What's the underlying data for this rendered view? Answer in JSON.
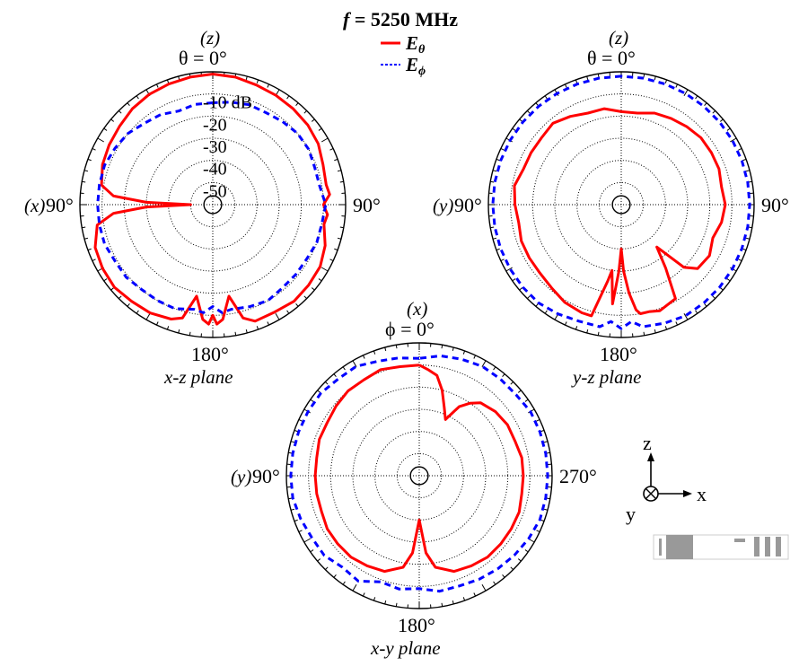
{
  "title": {
    "prefix": "f",
    "rest": " = 5250 MHz"
  },
  "legend": [
    {
      "label": "E",
      "sub": "θ",
      "color": "#ff0000",
      "dash": "solid"
    },
    {
      "label": "E",
      "sub": "ϕ",
      "color": "#0000ff",
      "dash": "dashed"
    }
  ],
  "colors": {
    "theta": "#ff0000",
    "phi": "#0000ff",
    "grid": "#000000"
  },
  "ring_labels": [
    "-10 dB",
    "-20",
    "-30",
    "-40",
    "-50"
  ],
  "axes": {
    "top_minus_x": "(x)",
    "top_minus_y": "(y)",
    "top_z": "(z)"
  },
  "chart_data": [
    {
      "type": "polar",
      "plane": "x-z plane",
      "axis_label_top": "(z)",
      "angle_label_top": "θ = 0°",
      "angle_label_left": "90°",
      "axis_label_left": "(x)",
      "angle_label_right": "90°",
      "angle_label_bottom": "180°",
      "r_range_db": [
        -60,
        0
      ],
      "r_ticks_db": [
        -10,
        -20,
        -30,
        -40,
        -50
      ],
      "series": [
        {
          "name": "Eθ",
          "angle_deg": [
            0,
            10,
            20,
            30,
            40,
            50,
            60,
            70,
            80,
            85,
            88,
            90,
            92,
            95,
            100,
            110,
            120,
            130,
            140,
            150,
            160,
            165,
            170,
            175,
            178,
            180,
            182,
            185,
            190,
            195,
            200,
            210,
            220,
            230,
            240,
            250,
            260,
            265,
            270,
            275,
            280,
            290,
            300,
            310,
            320,
            330,
            340,
            350,
            360
          ],
          "values_db": [
            -1,
            -1.5,
            -2,
            -2.5,
            -3.5,
            -5,
            -6,
            -7,
            -9,
            -15,
            -30,
            -50,
            -30,
            -15,
            -7,
            -3.5,
            -2.5,
            -2,
            -3,
            -3.5,
            -5,
            -7,
            -18,
            -8,
            -6,
            -10,
            -6,
            -8,
            -18,
            -7,
            -4,
            -4,
            -3,
            -3.5,
            -4,
            -6,
            -9,
            -8,
            -10,
            -7,
            -8,
            -7,
            -5,
            -4,
            -3.5,
            -3,
            -2.5,
            -1.5,
            -1
          ]
        },
        {
          "name": "Eϕ",
          "angle_deg": [
            0,
            10,
            20,
            30,
            40,
            50,
            60,
            70,
            80,
            90,
            100,
            110,
            120,
            130,
            140,
            150,
            160,
            170,
            175,
            180,
            185,
            190,
            200,
            210,
            220,
            230,
            240,
            250,
            260,
            270,
            280,
            290,
            300,
            310,
            320,
            330,
            340,
            350,
            360
          ],
          "values_db": [
            -14,
            -14,
            -15,
            -13,
            -12,
            -10,
            -9,
            -8,
            -8,
            -8,
            -8,
            -8,
            -9,
            -9,
            -10,
            -10,
            -10,
            -12,
            -11,
            -14,
            -11,
            -12,
            -11,
            -10,
            -11,
            -11,
            -11,
            -10,
            -10,
            -9,
            -11,
            -11,
            -10,
            -10,
            -11,
            -12,
            -12,
            -13,
            -14
          ]
        }
      ]
    },
    {
      "type": "polar",
      "plane": "y-z plane",
      "axis_label_top": "(z)",
      "angle_label_top": "θ = 0°",
      "angle_label_left": "90°",
      "axis_label_left": "(y)",
      "angle_label_right": "90°",
      "angle_label_bottom": "180°",
      "r_range_db": [
        -60,
        0
      ],
      "r_ticks_db": [
        -10,
        -20,
        -30,
        -40,
        -50
      ],
      "series": [
        {
          "name": "Eθ",
          "angle_deg": [
            0,
            10,
            20,
            30,
            40,
            50,
            60,
            70,
            80,
            90,
            100,
            110,
            120,
            130,
            140,
            150,
            160,
            165,
            170,
            172,
            175,
            178,
            180,
            182,
            185,
            188,
            190,
            195,
            200,
            210,
            215,
            220,
            225,
            230,
            240,
            250,
            260,
            270,
            280,
            290,
            300,
            310,
            320,
            330,
            340,
            350,
            360
          ],
          "values_db": [
            -18,
            -16,
            -16,
            -14,
            -12,
            -13,
            -13,
            -13,
            -11,
            -12,
            -13,
            -12,
            -12,
            -12,
            -11,
            -9,
            -8,
            -8,
            -25,
            -30,
            -15,
            -30,
            -40,
            -30,
            -20,
            -12,
            -10,
            -10,
            -9,
            -11,
            -25,
            -35,
            -20,
            -15,
            -14,
            -16,
            -14,
            -13,
            -14,
            -13,
            -13,
            -13,
            -14,
            -15,
            -16,
            -18,
            -18
          ]
        },
        {
          "name": "Eϕ",
          "angle_deg": [
            0,
            10,
            20,
            30,
            40,
            50,
            60,
            70,
            80,
            90,
            100,
            110,
            120,
            130,
            140,
            150,
            160,
            170,
            175,
            180,
            185,
            190,
            200,
            210,
            220,
            230,
            240,
            250,
            260,
            270,
            280,
            290,
            300,
            310,
            320,
            330,
            340,
            350,
            360
          ],
          "values_db": [
            -2,
            -2,
            -2,
            -2,
            -2,
            -2,
            -2,
            -2,
            -2,
            -2,
            -2,
            -2,
            -2,
            -2,
            -2,
            -3,
            -4,
            -4,
            -7,
            -4,
            -7,
            -4,
            -3,
            -2,
            -2,
            -2,
            -2,
            -2,
            -2,
            -2,
            -2,
            -2,
            -2,
            -2,
            -2,
            -2,
            -2,
            -2,
            -2
          ]
        }
      ]
    },
    {
      "type": "polar",
      "plane": "x-y plane",
      "axis_label_top": "(x)",
      "angle_label_top": "ϕ = 0°",
      "angle_label_left": "90°",
      "axis_label_left": "(y)",
      "angle_label_right": "270°",
      "angle_label_bottom": "180°",
      "r_range_db": [
        -60,
        0
      ],
      "r_ticks_db": [
        -10,
        -20,
        -30,
        -40,
        -50
      ],
      "series": [
        {
          "name": "Eθ",
          "angle_deg": [
            0,
            10,
            20,
            30,
            40,
            50,
            60,
            70,
            80,
            90,
            100,
            110,
            120,
            130,
            140,
            150,
            160,
            170,
            175,
            180,
            185,
            190,
            200,
            210,
            220,
            230,
            240,
            250,
            260,
            270,
            280,
            290,
            300,
            310,
            320,
            325,
            330,
            335,
            340,
            345,
            350,
            355,
            360
          ],
          "values_db": [
            -10,
            -10,
            -9,
            -10,
            -10,
            -11,
            -12,
            -12,
            -13,
            -13,
            -13,
            -13,
            -12,
            -12,
            -12,
            -13,
            -14,
            -18,
            -25,
            -40,
            -25,
            -18,
            -14,
            -13,
            -12,
            -12,
            -12,
            -12,
            -13,
            -13,
            -13,
            -14,
            -14,
            -15,
            -17,
            -20,
            -24,
            -32,
            -27,
            -20,
            -14,
            -12,
            -10
          ]
        },
        {
          "name": "Eϕ",
          "angle_deg": [
            0,
            10,
            20,
            30,
            40,
            50,
            60,
            70,
            80,
            90,
            100,
            110,
            120,
            130,
            140,
            150,
            160,
            170,
            180,
            190,
            200,
            210,
            220,
            230,
            240,
            250,
            260,
            270,
            280,
            290,
            300,
            310,
            320,
            330,
            340,
            350,
            360
          ],
          "values_db": [
            -7,
            -6,
            -5,
            -3,
            -3,
            -2,
            -2,
            -2,
            -2,
            -2,
            -2,
            -3,
            -4,
            -4,
            -6,
            -5,
            -9,
            -8,
            -9,
            -7,
            -7,
            -6,
            -5,
            -4,
            -3,
            -2,
            -2,
            -2,
            -2,
            -2,
            -2,
            -3,
            -3,
            -3,
            -4,
            -5,
            -7
          ]
        }
      ]
    }
  ],
  "coord_axes": {
    "z": "z",
    "x": "x",
    "y": "y"
  }
}
